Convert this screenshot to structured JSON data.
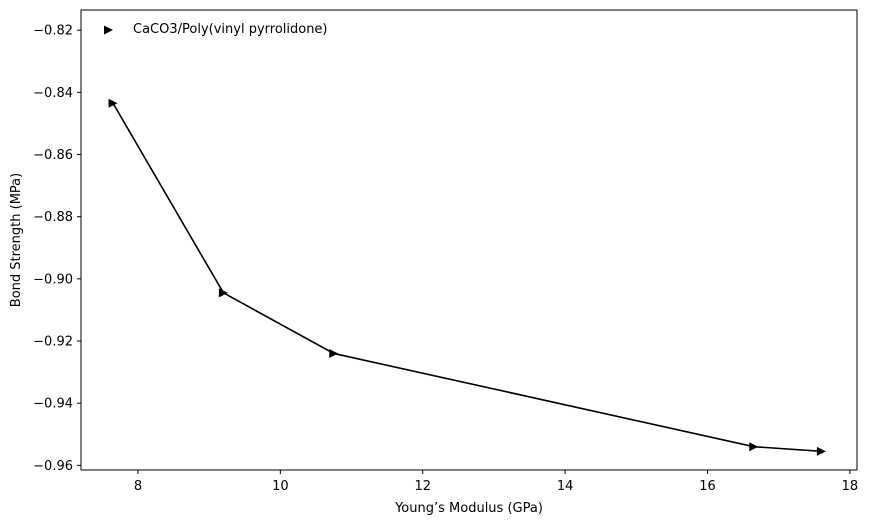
{
  "chart_data": {
    "type": "line",
    "title": "",
    "xlabel": "Young’s Modulus (GPa)",
    "ylabel": "Bond Strength (MPa)",
    "xlim": [
      7.2,
      18.1
    ],
    "ylim": [
      -0.9615,
      -0.8135
    ],
    "xticks": [
      8,
      10,
      12,
      14,
      16,
      18
    ],
    "yticks": [
      -0.82,
      -0.84,
      -0.86,
      -0.88,
      -0.9,
      -0.92,
      -0.94,
      -0.96
    ],
    "xtick_labels": [
      "8",
      "10",
      "12",
      "14",
      "16",
      "18"
    ],
    "ytick_labels": [
      "−0.82",
      "−0.84",
      "−0.86",
      "−0.88",
      "−0.90",
      "−0.92",
      "−0.94",
      "−0.96"
    ],
    "grid": false,
    "legend_position": "upper-left",
    "series": [
      {
        "name": "CaCO3/Poly(vinyl pyrrolidone)",
        "marker": "triangle-right",
        "color": "#000000",
        "x": [
          7.65,
          9.2,
          10.75,
          16.65,
          17.6
        ],
        "y": [
          -0.8435,
          -0.9045,
          -0.924,
          -0.954,
          -0.9555
        ]
      }
    ]
  }
}
